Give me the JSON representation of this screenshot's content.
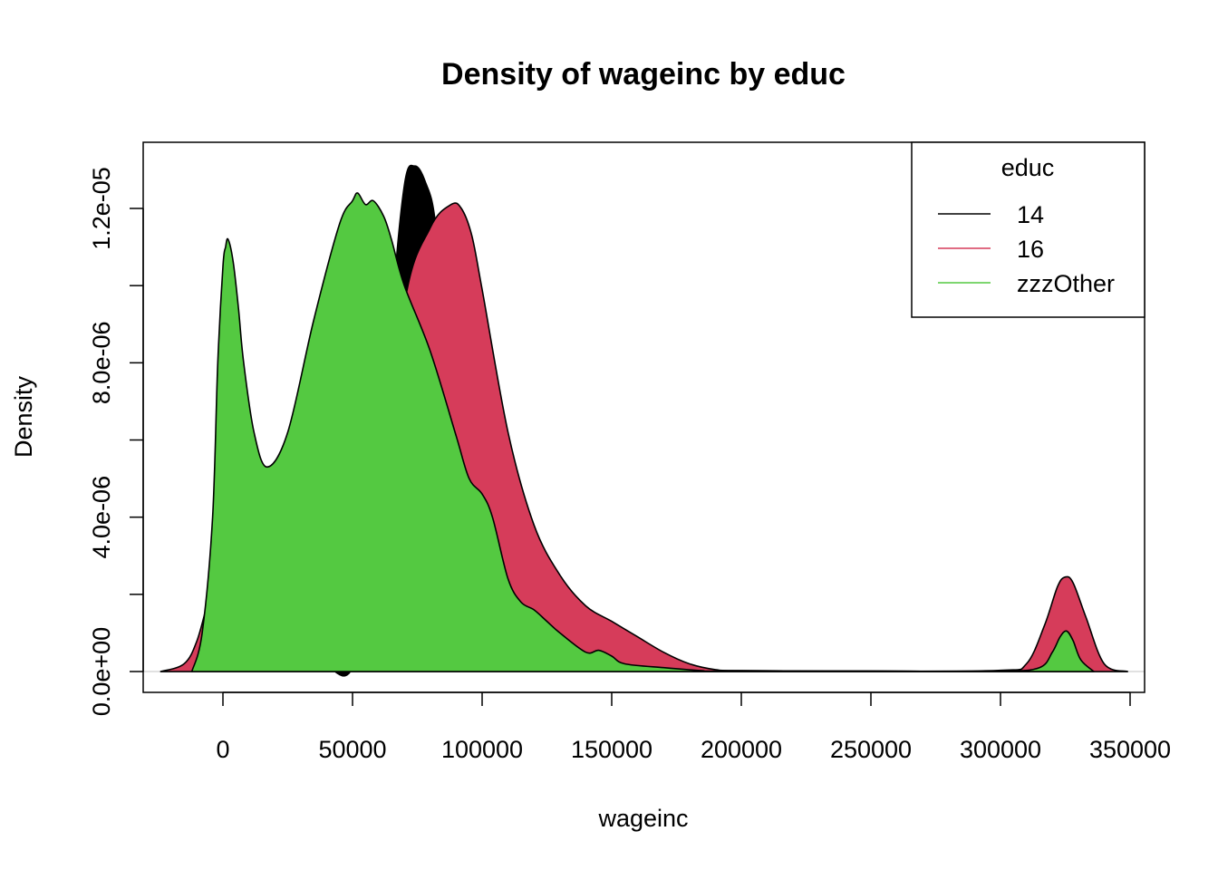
{
  "chart_data": {
    "type": "area",
    "title": "Density of wageinc by educ",
    "xlabel": "wageinc",
    "ylabel": "Density",
    "xlim": [
      -25000,
      350000
    ],
    "ylim": [
      0,
      1.3e-05
    ],
    "x_ticks": [
      0,
      50000,
      100000,
      150000,
      200000,
      250000,
      300000,
      350000
    ],
    "x_tick_labels": [
      "0",
      "50000",
      "100000",
      "150000",
      "200000",
      "250000",
      "300000",
      "350000"
    ],
    "y_ticks": [
      0,
      2e-06,
      4e-06,
      6e-06,
      8e-06,
      1e-05,
      1.2e-05
    ],
    "y_tick_labels": [
      "0.0e+00",
      "",
      "4.0e-06",
      "",
      "8.0e-06",
      "",
      "1.2e-05"
    ],
    "grid": false,
    "legend": {
      "title": "educ",
      "position": "top-right"
    },
    "series": [
      {
        "name": "14",
        "color": "#000000",
        "x": [
          -24000,
          -10000,
          0,
          10000,
          20000,
          30000,
          40000,
          50000,
          60000,
          65000,
          70000,
          74000,
          78000,
          82000,
          86000,
          90000,
          100000,
          110000,
          120000,
          150000,
          200000,
          250000,
          300000,
          349000
        ],
        "y": [
          0,
          1e-07,
          1e-07,
          1e-07,
          1e-07,
          1e-07,
          1e-07,
          1e-07,
          3e-06,
          9e-06,
          1.26e-05,
          1.31e-05,
          1.27e-05,
          1.16e-05,
          8e-06,
          3e-06,
          6e-07,
          2e-07,
          1e-07,
          5e-08,
          2e-08,
          1e-08,
          0,
          0
        ]
      },
      {
        "name": "16",
        "color": "#d63c5a",
        "x": [
          -24000,
          -15000,
          -10000,
          -5000,
          0,
          10000,
          20000,
          40000,
          60000,
          70000,
          80000,
          88000,
          92000,
          96000,
          100000,
          110000,
          120000,
          130000,
          140000,
          150000,
          160000,
          170000,
          180000,
          190000,
          200000,
          250000,
          300000,
          310000,
          317000,
          322000,
          325000,
          328000,
          333000,
          340000,
          349000
        ],
        "y": [
          0,
          2e-07,
          8e-07,
          2e-06,
          3e-06,
          3.4e-06,
          3.2e-06,
          3e-06,
          3.2e-06,
          9.5e-06,
          1.15e-05,
          1.21e-05,
          1.2e-05,
          1.13e-05,
          9.9e-06,
          6.2e-06,
          3.8e-06,
          2.5e-06,
          1.7e-06,
          1.3e-06,
          9e-07,
          5e-07,
          2e-07,
          5e-08,
          2e-08,
          1e-08,
          3e-08,
          2e-07,
          1.2e-06,
          2.2e-06,
          2.45e-06,
          2.3e-06,
          1.4e-06,
          2e-07,
          0
        ]
      },
      {
        "name": "zzzOther",
        "color": "#54c941",
        "x": [
          -12000,
          -8000,
          -4000,
          -2000,
          0,
          1000,
          2000,
          4000,
          6000,
          8000,
          12000,
          17000,
          25000,
          35000,
          45000,
          50000,
          52000,
          55000,
          58000,
          62000,
          65000,
          70000,
          80000,
          90000,
          95000,
          100000,
          104000,
          110000,
          115000,
          120000,
          125000,
          130000,
          140000,
          145000,
          150000,
          155000,
          170000,
          185000,
          190000,
          250000,
          300000,
          315000,
          320000,
          323000,
          325500,
          328000,
          331000,
          336000
        ],
        "y": [
          0,
          1e-06,
          4e-06,
          8e-06,
          1.05e-05,
          1.1e-05,
          1.12e-05,
          1.06e-05,
          9.4e-06,
          8e-06,
          6.2e-06,
          5.3e-06,
          6.2e-06,
          9.1e-06,
          1.16e-05,
          1.22e-05,
          1.24e-05,
          1.21e-05,
          1.22e-05,
          1.18e-05,
          1.12e-05,
          1e-05,
          8.3e-06,
          6.1e-06,
          5e-06,
          4.6e-06,
          4e-06,
          2.4e-06,
          1.8e-06,
          1.6e-06,
          1.3e-06,
          1e-06,
          5e-07,
          5.5e-07,
          4e-07,
          2e-07,
          1e-07,
          2e-08,
          1e-08,
          1e-08,
          1e-08,
          1e-07,
          5e-07,
          9e-07,
          1.05e-06,
          8e-07,
          3e-07,
          0
        ]
      }
    ]
  }
}
